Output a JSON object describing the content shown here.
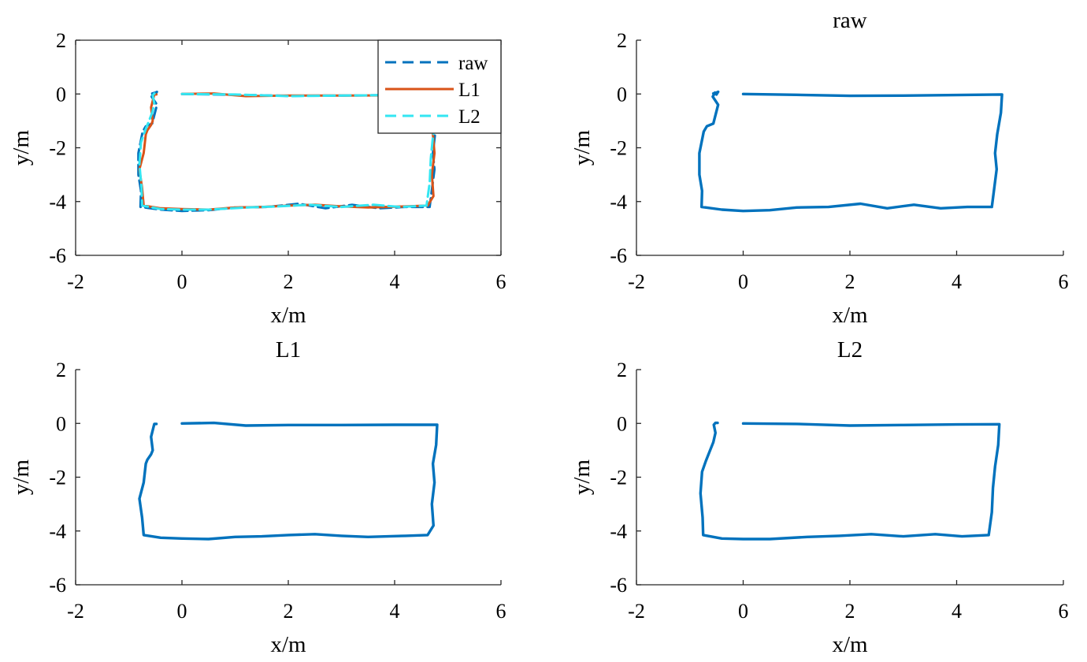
{
  "chart_data": [
    {
      "type": "line",
      "title": "",
      "xlabel": "x/m",
      "ylabel": "y/m",
      "xlim": [
        -2,
        6
      ],
      "ylim": [
        -6,
        2
      ],
      "xticks": [
        "-2",
        "0",
        "2",
        "4",
        "6"
      ],
      "yticks": [
        "2",
        "0",
        "-2",
        "-4",
        "-6"
      ],
      "grid": false,
      "legend": {
        "position": "top-right",
        "entries": [
          "raw",
          "L1",
          "L2"
        ]
      },
      "series": [
        {
          "name": "raw",
          "color": "#0072BD",
          "style": "dashed",
          "trajectory": "raw"
        },
        {
          "name": "L1",
          "color": "#D95319",
          "style": "solid",
          "trajectory": "l1"
        },
        {
          "name": "L2",
          "color": "#33E6F2",
          "style": "dashed",
          "trajectory": "l2"
        }
      ]
    },
    {
      "type": "line",
      "title": "raw",
      "xlabel": "x/m",
      "ylabel": "y/m",
      "xlim": [
        -2,
        6
      ],
      "ylim": [
        -6,
        2
      ],
      "xticks": [
        "-2",
        "0",
        "2",
        "4",
        "6"
      ],
      "yticks": [
        "2",
        "0",
        "-2",
        "-4",
        "-6"
      ],
      "grid": false,
      "series": [
        {
          "color": "#0072BD",
          "style": "solid",
          "trajectory": "raw"
        }
      ]
    },
    {
      "type": "line",
      "title": "L1",
      "xlabel": "x/m",
      "ylabel": "y/m",
      "xlim": [
        -2,
        6
      ],
      "ylim": [
        -6,
        2
      ],
      "xticks": [
        "-2",
        "0",
        "2",
        "4",
        "6"
      ],
      "yticks": [
        "2",
        "0",
        "-2",
        "-4",
        "-6"
      ],
      "grid": false,
      "series": [
        {
          "color": "#0072BD",
          "style": "solid",
          "trajectory": "l1"
        }
      ]
    },
    {
      "type": "line",
      "title": "L2",
      "xlabel": "x/m",
      "ylabel": "y/m",
      "xlim": [
        -2,
        6
      ],
      "ylim": [
        -6,
        2
      ],
      "xticks": [
        "-2",
        "0",
        "2",
        "4",
        "6"
      ],
      "yticks": [
        "2",
        "0",
        "-2",
        "-4",
        "-6"
      ],
      "grid": false,
      "series": [
        {
          "color": "#0072BD",
          "style": "solid",
          "trajectory": "l2"
        }
      ]
    }
  ],
  "trajectories": {
    "raw": {
      "x": [
        0,
        1,
        2,
        3,
        4,
        4.85,
        4.83,
        4.76,
        4.72,
        4.75,
        4.66,
        4.2,
        3.7,
        3.2,
        2.7,
        2.2,
        1.6,
        1.0,
        0.5,
        0.0,
        -0.4,
        -0.78,
        -0.77,
        -0.82,
        -0.82,
        -0.74,
        -0.68,
        -0.56,
        -0.47,
        -0.57,
        -0.53,
        -0.5,
        -0.47,
        -0.5,
        -0.56
      ],
      "y": [
        0.0,
        -0.03,
        -0.07,
        -0.06,
        -0.04,
        -0.02,
        -0.7,
        -1.5,
        -2.2,
        -2.8,
        -4.2,
        -4.2,
        -4.25,
        -4.12,
        -4.25,
        -4.08,
        -4.2,
        -4.22,
        -4.32,
        -4.35,
        -4.3,
        -4.2,
        -3.6,
        -3.0,
        -2.2,
        -1.4,
        -1.2,
        -1.1,
        -0.4,
        -0.1,
        0.05,
        -0.02,
        0.08,
        0.05,
        0.02
      ]
    },
    "l1": {
      "x": [
        0,
        0.6,
        1.2,
        2.0,
        3.0,
        4.0,
        4.8,
        4.78,
        4.72,
        4.75,
        4.7,
        4.73,
        4.62,
        4.2,
        3.5,
        3.0,
        2.5,
        2.0,
        1.5,
        1.0,
        0.5,
        0.0,
        -0.4,
        -0.72,
        -0.75,
        -0.8,
        -0.72,
        -0.68,
        -0.65,
        -0.58,
        -0.55,
        -0.58,
        -0.52,
        -0.48
      ],
      "y": [
        0.0,
        0.02,
        -0.08,
        -0.06,
        -0.06,
        -0.05,
        -0.05,
        -0.8,
        -1.5,
        -2.2,
        -3.0,
        -3.8,
        -4.15,
        -4.18,
        -4.22,
        -4.18,
        -4.12,
        -4.15,
        -4.2,
        -4.22,
        -4.3,
        -4.28,
        -4.25,
        -4.15,
        -3.5,
        -2.8,
        -2.2,
        -1.5,
        -1.35,
        -1.15,
        -1.0,
        -0.5,
        -0.02,
        -0.02
      ]
    },
    "l2": {
      "x": [
        0,
        1,
        2,
        3,
        4,
        4.8,
        4.78,
        4.72,
        4.68,
        4.66,
        4.6,
        4.1,
        3.6,
        3.0,
        2.4,
        1.8,
        1.2,
        0.5,
        0.0,
        -0.4,
        -0.75,
        -0.76,
        -0.8,
        -0.77,
        -0.7,
        -0.62,
        -0.56,
        -0.52,
        -0.55,
        -0.52,
        -0.48
      ],
      "y": [
        0.0,
        -0.02,
        -0.08,
        -0.06,
        -0.04,
        -0.03,
        -0.8,
        -1.6,
        -2.4,
        -3.3,
        -4.15,
        -4.2,
        -4.12,
        -4.2,
        -4.12,
        -4.18,
        -4.22,
        -4.3,
        -4.3,
        -4.28,
        -4.15,
        -3.5,
        -2.6,
        -1.8,
        -1.4,
        -1.0,
        -0.7,
        -0.35,
        -0.05,
        0.02,
        0.02
      ]
    }
  }
}
